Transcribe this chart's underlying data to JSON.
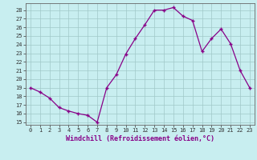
{
  "x": [
    0,
    1,
    2,
    3,
    4,
    5,
    6,
    7,
    8,
    9,
    10,
    11,
    12,
    13,
    14,
    15,
    16,
    17,
    18,
    19,
    20,
    21,
    22,
    23
  ],
  "y": [
    19,
    18.5,
    17.8,
    16.7,
    16.3,
    16.0,
    15.8,
    15.0,
    19.0,
    20.5,
    22.9,
    24.7,
    26.3,
    28.0,
    28.0,
    28.3,
    27.3,
    26.8,
    23.2,
    24.7,
    25.8,
    24.1,
    21.0,
    19.0
  ],
  "xlim": [
    -0.5,
    23.5
  ],
  "ylim": [
    14.7,
    28.8
  ],
  "yticks": [
    15,
    16,
    17,
    18,
    19,
    20,
    21,
    22,
    23,
    24,
    25,
    26,
    27,
    28
  ],
  "xtick_labels": [
    "0",
    "1",
    "2",
    "3",
    "4",
    "5",
    "6",
    "7",
    "8",
    "9",
    "10",
    "11",
    "12",
    "13",
    "14",
    "15",
    "16",
    "17",
    "18",
    "19",
    "20",
    "21",
    "22",
    "23"
  ],
  "xlabel": "Windchill (Refroidissement éolien,°C)",
  "line_color": "#880088",
  "marker": "+",
  "bg_color": "#c8eef0",
  "grid_color": "#a0c8c8",
  "axis_fontsize": 6,
  "tick_fontsize": 5,
  "label_color": "#880088"
}
